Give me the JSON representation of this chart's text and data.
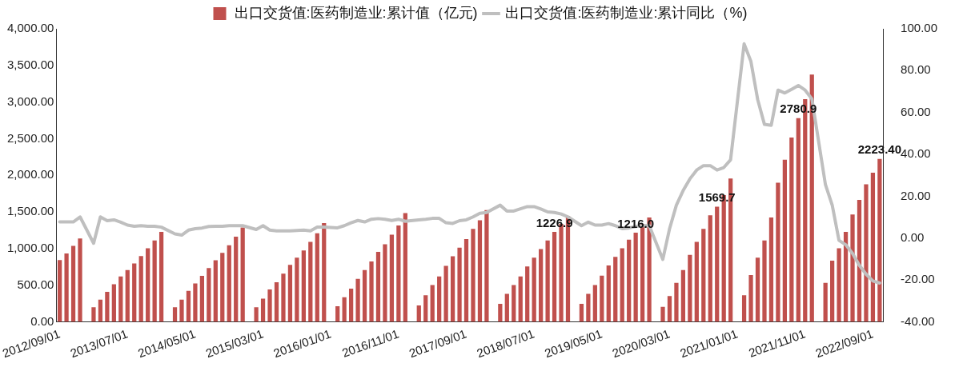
{
  "chart_data": {
    "type": "bar",
    "legend": "top",
    "grid": false,
    "categories": [
      "2012/09/01",
      null,
      null,
      null,
      null,
      null,
      null,
      null,
      null,
      null,
      "2013/07/01",
      null,
      null,
      null,
      null,
      null,
      null,
      null,
      null,
      null,
      "2014/05/01",
      null,
      null,
      null,
      null,
      null,
      null,
      null,
      null,
      null,
      "2015/03/01",
      null,
      null,
      null,
      null,
      null,
      null,
      null,
      null,
      null,
      "2016/01/01",
      null,
      null,
      null,
      null,
      null,
      null,
      null,
      null,
      null,
      "2016/11/01",
      null,
      null,
      null,
      null,
      null,
      null,
      null,
      null,
      null,
      "2017/09/01",
      null,
      null,
      null,
      null,
      null,
      null,
      null,
      null,
      null,
      "2018/07/01",
      null,
      null,
      null,
      null,
      null,
      null,
      null,
      null,
      null,
      "2019/05/01",
      null,
      null,
      null,
      null,
      null,
      null,
      null,
      null,
      null,
      "2020/03/01",
      null,
      null,
      null,
      null,
      null,
      null,
      null,
      null,
      null,
      "2021/01/01",
      null,
      null,
      null,
      null,
      null,
      null,
      null,
      null,
      null,
      "2021/11/01",
      null,
      null,
      null,
      null,
      null,
      null,
      null,
      null,
      null,
      "2022/09/01",
      null
    ],
    "ylim": [
      0,
      4000
    ],
    "yticks": [
      {
        "value": 0,
        "label": "0.00"
      },
      {
        "value": 500,
        "label": "500.00"
      },
      {
        "value": 1000,
        "label": "1,000.00"
      },
      {
        "value": 1500,
        "label": "1,500.00"
      },
      {
        "value": 2000,
        "label": "2,000.00"
      },
      {
        "value": 2500,
        "label": "2,500.00"
      },
      {
        "value": 3000,
        "label": "3,000.00"
      },
      {
        "value": 3500,
        "label": "3,500.00"
      },
      {
        "value": 4000,
        "label": "4,000.00"
      }
    ],
    "y2lim": [
      -40,
      100
    ],
    "y2ticks": [
      {
        "value": -40,
        "label": "-40.00"
      },
      {
        "value": -20,
        "label": "-20.00"
      },
      {
        "value": 0,
        "label": "0.00"
      },
      {
        "value": 20,
        "label": "20.00"
      },
      {
        "value": 40,
        "label": "40.00"
      },
      {
        "value": 60,
        "label": "60.00"
      },
      {
        "value": 80,
        "label": "80.00"
      },
      {
        "value": 100,
        "label": "100.00"
      }
    ],
    "series": [
      {
        "name": "出口交货值:医药制造业:累计值（亿元)",
        "type": "bar",
        "color": "#c0504d",
        "values": [
          843,
          933,
          1035,
          1138,
          null,
          197,
          303,
          409,
          512,
          618,
          705,
          795,
          898,
          1004,
          1110,
          1228,
          null,
          197,
          303,
          421,
          524,
          626,
          732,
          839,
          941,
          1043,
          1161,
          1287,
          null,
          197,
          315,
          441,
          539,
          657,
          776,
          874,
          972,
          1091,
          1209,
          1346,
          null,
          213,
          335,
          453,
          587,
          705,
          823,
          953,
          1059,
          1189,
          1315,
          1484,
          null,
          224,
          362,
          500,
          618,
          764,
          894,
          1012,
          1130,
          1268,
          1386,
          1524,
          null,
          245,
          381,
          500,
          618,
          756,
          874,
          992,
          1110,
          1226.9,
          1335,
          1445,
          null,
          244,
          382,
          500,
          630,
          768,
          886,
          1004,
          1122,
          1216,
          1335,
          1425,
          null,
          205,
          350,
          531,
          705,
          913,
          1091,
          1268,
          1453,
          1569.7,
          1728,
          1957,
          null,
          362,
          638,
          874,
          1110,
          1425,
          1898,
          2213,
          2516,
          2780.9,
          3039,
          3374,
          null,
          531,
          835,
          1004,
          1228,
          1465,
          1665,
          1878,
          2035,
          2223.4
        ],
        "value_labels": [
          null,
          null,
          null,
          null,
          null,
          null,
          null,
          null,
          null,
          null,
          null,
          null,
          null,
          null,
          null,
          null,
          null,
          null,
          null,
          null,
          null,
          null,
          null,
          null,
          null,
          null,
          null,
          null,
          null,
          null,
          null,
          null,
          null,
          null,
          null,
          null,
          null,
          null,
          null,
          null,
          null,
          null,
          null,
          null,
          null,
          null,
          null,
          null,
          null,
          null,
          null,
          null,
          null,
          null,
          null,
          null,
          null,
          null,
          null,
          null,
          null,
          null,
          null,
          null,
          null,
          null,
          null,
          null,
          null,
          null,
          null,
          null,
          null,
          "1226.9",
          null,
          null,
          null,
          null,
          null,
          null,
          null,
          null,
          null,
          null,
          null,
          "1216.0",
          null,
          null,
          null,
          null,
          null,
          null,
          null,
          null,
          null,
          null,
          null,
          "1569.7",
          null,
          null,
          null,
          null,
          null,
          null,
          null,
          null,
          null,
          null,
          null,
          "2780.9",
          null,
          null,
          null,
          null,
          null,
          null,
          null,
          null,
          null,
          null,
          null,
          "2223.40"
        ]
      },
      {
        "name": "出口交货值:医药制造业:累计同比（%)",
        "type": "line",
        "axis": "y2",
        "color": "#bfbfbf",
        "values": [
          7.7,
          7.7,
          7.7,
          10.1,
          null,
          -2.5,
          10.1,
          8.3,
          8.7,
          7.6,
          6.2,
          5.6,
          5.9,
          5.6,
          5.6,
          5.2,
          null,
          2.0,
          1.4,
          3.8,
          4.5,
          4.8,
          5.5,
          5.6,
          5.6,
          5.9,
          5.9,
          5.9,
          null,
          4.1,
          5.9,
          3.8,
          3.4,
          3.4,
          3.4,
          3.6,
          3.8,
          3.4,
          5.2,
          5.2,
          null,
          4.9,
          5.9,
          7.3,
          8.4,
          7.7,
          9.0,
          9.3,
          9.0,
          8.4,
          9.0,
          8.0,
          null,
          8.7,
          9.0,
          9.4,
          9.4,
          7.3,
          7.0,
          8.3,
          8.7,
          10.1,
          11.8,
          12.2,
          null,
          15.7,
          12.9,
          12.9,
          14.0,
          15.0,
          15.0,
          13.9,
          12.5,
          12.2,
          11.5,
          10.1,
          null,
          5.9,
          7.6,
          6.2,
          6.2,
          6.9,
          5.9,
          4.5,
          4.8,
          5.5,
          5.9,
          5.9,
          null,
          -10.2,
          4.5,
          15.7,
          22.7,
          28.3,
          32.5,
          34.6,
          34.6,
          32.5,
          33.7,
          37.4,
          null,
          92.8,
          84.4,
          66.2,
          54.3,
          53.9,
          70.7,
          69.3,
          71.1,
          72.9,
          70.7,
          66.5,
          null,
          25.5,
          15.7,
          -1.1,
          -3.2,
          -7.4,
          -13.0,
          -17.3,
          -20.5,
          -21.5
        ]
      }
    ]
  }
}
